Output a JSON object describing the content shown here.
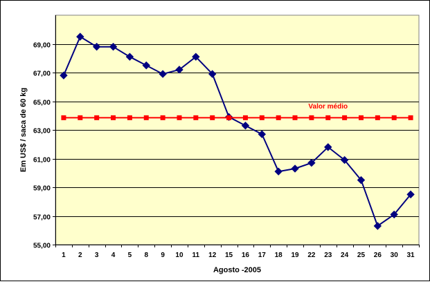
{
  "chart_data": {
    "type": "line",
    "title": "",
    "xlabel": "Agosto -2005",
    "ylabel": "Em US$ / saca de 60 kg",
    "categories": [
      "1",
      "2",
      "3",
      "4",
      "5",
      "8",
      "9",
      "10",
      "11",
      "12",
      "15",
      "16",
      "17",
      "18",
      "19",
      "22",
      "23",
      "24",
      "25",
      "26",
      "30",
      "31"
    ],
    "ylim": [
      55,
      71
    ],
    "yticks": [
      55,
      57,
      59,
      61,
      63,
      65,
      67,
      69
    ],
    "ytick_labels": [
      "55,00",
      "57,00",
      "59,00",
      "61,00",
      "63,00",
      "65,00",
      "67,00",
      "69,00"
    ],
    "grid": true,
    "legend": "none",
    "plot_background": "#ffffcc",
    "series": [
      {
        "color": "#000080",
        "marker": "diamond",
        "values": [
          66.8,
          69.5,
          68.8,
          68.8,
          68.1,
          67.5,
          66.9,
          67.2,
          68.1,
          66.9,
          63.9,
          63.3,
          62.7,
          60.1,
          60.3,
          60.7,
          61.8,
          60.9,
          59.5,
          56.3,
          57.1,
          58.5
        ]
      },
      {
        "color": "#ff0000",
        "marker": "square",
        "values": [
          63.85,
          63.85,
          63.85,
          63.85,
          63.85,
          63.85,
          63.85,
          63.85,
          63.85,
          63.85,
          63.85,
          63.85,
          63.85,
          63.85,
          63.85,
          63.85,
          63.85,
          63.85,
          63.85,
          63.85,
          63.85,
          63.85
        ]
      }
    ],
    "annotations": [
      {
        "text": "Valor médio",
        "color": "#ff0000",
        "x_category": "23",
        "y": 64.5
      }
    ]
  }
}
